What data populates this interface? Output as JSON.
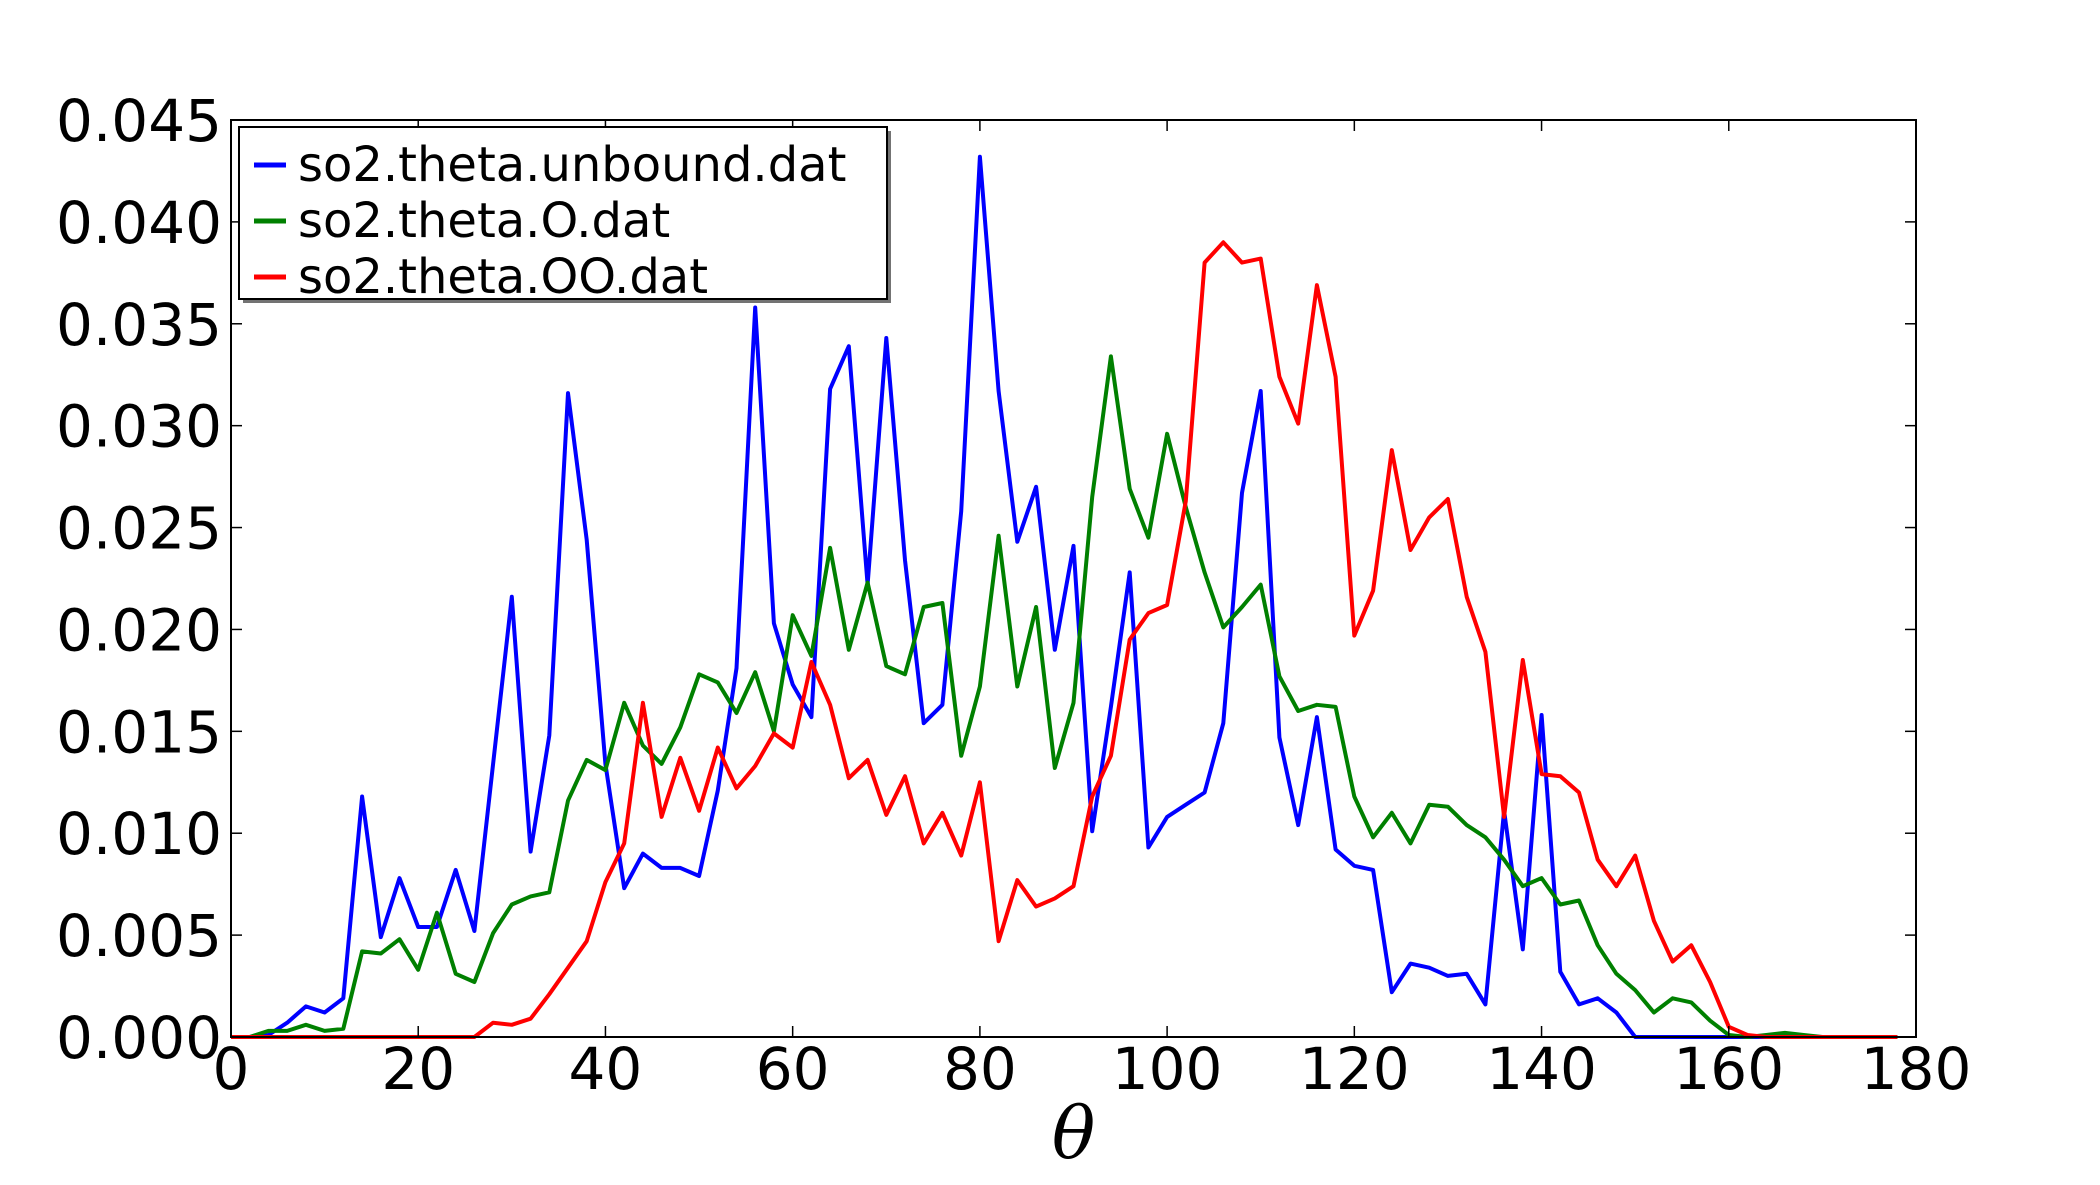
{
  "chart_data": {
    "type": "line",
    "xlabel": "θ",
    "ylabel": "",
    "title": "",
    "xlim": [
      0,
      180
    ],
    "ylim": [
      0,
      0.045
    ],
    "xticks": [
      0,
      20,
      40,
      60,
      80,
      100,
      120,
      140,
      160,
      180
    ],
    "xtick_labels": [
      "0",
      "20",
      "40",
      "60",
      "80",
      "100",
      "120",
      "140",
      "160",
      "180"
    ],
    "yticks": [
      0,
      0.005,
      0.01,
      0.015,
      0.02,
      0.025,
      0.03,
      0.035,
      0.04,
      0.045
    ],
    "ytick_labels": [
      "0.000",
      "0.005",
      "0.010",
      "0.015",
      "0.020",
      "0.025",
      "0.030",
      "0.035",
      "0.040",
      "0.045"
    ],
    "grid": false,
    "legend_position": "top-left",
    "series": [
      {
        "name": "so2.theta.unbound.dat",
        "color": "#0000ff",
        "x": [
          0,
          2,
          4,
          6,
          8,
          10,
          12,
          14,
          16,
          18,
          20,
          22,
          24,
          26,
          28,
          30,
          32,
          34,
          36,
          38,
          40,
          42,
          44,
          46,
          48,
          50,
          52,
          54,
          56,
          58,
          60,
          62,
          64,
          66,
          68,
          70,
          72,
          74,
          76,
          78,
          80,
          82,
          84,
          86,
          88,
          90,
          92,
          94,
          96,
          98,
          100,
          102,
          104,
          106,
          108,
          110,
          112,
          114,
          116,
          118,
          120,
          122,
          124,
          126,
          128,
          130,
          132,
          134,
          136,
          138,
          140,
          142,
          144,
          146,
          148,
          150,
          152,
          154,
          156,
          158,
          160,
          162,
          164,
          166,
          168,
          170,
          172,
          174,
          176,
          178
        ],
        "y": [
          0,
          0,
          0.0001,
          0.0007,
          0.0015,
          0.0012,
          0.0019,
          0.0118,
          0.0049,
          0.0078,
          0.0054,
          0.0054,
          0.0082,
          0.0052,
          0.0134,
          0.0216,
          0.0091,
          0.0148,
          0.0316,
          0.0244,
          0.0134,
          0.0073,
          0.009,
          0.0083,
          0.0083,
          0.0079,
          0.0121,
          0.0181,
          0.0358,
          0.0203,
          0.0173,
          0.0157,
          0.0318,
          0.0339,
          0.0222,
          0.0343,
          0.0234,
          0.0154,
          0.0163,
          0.0258,
          0.0432,
          0.0317,
          0.0243,
          0.027,
          0.019,
          0.0241,
          0.0101,
          0.0162,
          0.0228,
          0.0093,
          0.0108,
          0.0114,
          0.012,
          0.0154,
          0.0267,
          0.0317,
          0.0147,
          0.0104,
          0.0157,
          0.0092,
          0.0084,
          0.0082,
          0.0022,
          0.0036,
          0.0034,
          0.003,
          0.0031,
          0.0016,
          0.0111,
          0.0043,
          0.0158,
          0.0032,
          0.0016,
          0.0019,
          0.0012,
          0,
          0,
          0,
          0,
          0,
          0,
          0,
          0,
          0,
          0,
          0,
          0,
          0,
          0,
          0
        ]
      },
      {
        "name": "so2.theta.O.dat",
        "color": "#008000",
        "x": [
          0,
          2,
          4,
          6,
          8,
          10,
          12,
          14,
          16,
          18,
          20,
          22,
          24,
          26,
          28,
          30,
          32,
          34,
          36,
          38,
          40,
          42,
          44,
          46,
          48,
          50,
          52,
          54,
          56,
          58,
          60,
          62,
          64,
          66,
          68,
          70,
          72,
          74,
          76,
          78,
          80,
          82,
          84,
          86,
          88,
          90,
          92,
          94,
          96,
          98,
          100,
          102,
          104,
          106,
          108,
          110,
          112,
          114,
          116,
          118,
          120,
          122,
          124,
          126,
          128,
          130,
          132,
          134,
          136,
          138,
          140,
          142,
          144,
          146,
          148,
          150,
          152,
          154,
          156,
          158,
          160,
          162,
          164,
          166,
          168,
          170,
          172,
          174,
          176,
          178
        ],
        "y": [
          0,
          0,
          0.0003,
          0.0003,
          0.0006,
          0.0003,
          0.0004,
          0.0042,
          0.0041,
          0.0048,
          0.0033,
          0.0061,
          0.0031,
          0.0027,
          0.0051,
          0.0065,
          0.0069,
          0.0071,
          0.0116,
          0.0136,
          0.0131,
          0.0164,
          0.0143,
          0.0134,
          0.0152,
          0.0178,
          0.0174,
          0.0159,
          0.0179,
          0.015,
          0.0207,
          0.0187,
          0.024,
          0.019,
          0.0223,
          0.0182,
          0.0178,
          0.0211,
          0.0213,
          0.0138,
          0.0172,
          0.0246,
          0.0172,
          0.0211,
          0.0132,
          0.0164,
          0.0265,
          0.0334,
          0.0269,
          0.0245,
          0.0296,
          0.026,
          0.0228,
          0.0201,
          0.0211,
          0.0222,
          0.0177,
          0.016,
          0.0163,
          0.0162,
          0.0118,
          0.0098,
          0.011,
          0.0095,
          0.0114,
          0.0113,
          0.0104,
          0.0098,
          0.0087,
          0.0074,
          0.0078,
          0.0065,
          0.0067,
          0.0045,
          0.0031,
          0.0023,
          0.0012,
          0.0019,
          0.0017,
          0.0008,
          0.0001,
          0,
          0.0001,
          0.0002,
          0.0001,
          0,
          0,
          0,
          0,
          0
        ]
      },
      {
        "name": "so2.theta.OO.dat",
        "color": "#ff0000",
        "x": [
          0,
          2,
          4,
          6,
          8,
          10,
          12,
          14,
          16,
          18,
          20,
          22,
          24,
          26,
          28,
          30,
          32,
          34,
          36,
          38,
          40,
          42,
          44,
          46,
          48,
          50,
          52,
          54,
          56,
          58,
          60,
          62,
          64,
          66,
          68,
          70,
          72,
          74,
          76,
          78,
          80,
          82,
          84,
          86,
          88,
          90,
          92,
          94,
          96,
          98,
          100,
          102,
          104,
          106,
          108,
          110,
          112,
          114,
          116,
          118,
          120,
          122,
          124,
          126,
          128,
          130,
          132,
          134,
          136,
          138,
          140,
          142,
          144,
          146,
          148,
          150,
          152,
          154,
          156,
          158,
          160,
          162,
          164,
          166,
          168,
          170,
          172,
          174,
          176,
          178
        ],
        "y": [
          0,
          0,
          0,
          0,
          0,
          0,
          0,
          0,
          0,
          0,
          0,
          0,
          0,
          0,
          0.0007,
          0.0006,
          0.0009,
          0.0021,
          0.0034,
          0.0047,
          0.0076,
          0.0095,
          0.0164,
          0.0108,
          0.0137,
          0.0111,
          0.0142,
          0.0122,
          0.0133,
          0.0149,
          0.0142,
          0.0184,
          0.0163,
          0.0127,
          0.0136,
          0.0109,
          0.0128,
          0.0095,
          0.011,
          0.0089,
          0.0125,
          0.0047,
          0.0077,
          0.0064,
          0.0068,
          0.0074,
          0.0118,
          0.0138,
          0.0195,
          0.0208,
          0.0212,
          0.0263,
          0.038,
          0.039,
          0.038,
          0.0382,
          0.0324,
          0.0301,
          0.0369,
          0.0324,
          0.0197,
          0.0219,
          0.0288,
          0.0239,
          0.0255,
          0.0264,
          0.0216,
          0.0189,
          0.0108,
          0.0185,
          0.0129,
          0.0128,
          0.012,
          0.0087,
          0.0074,
          0.0089,
          0.0057,
          0.0037,
          0.0045,
          0.0027,
          0.0005,
          0.0001,
          0,
          0,
          0,
          0,
          0,
          0,
          0,
          0
        ]
      }
    ]
  }
}
